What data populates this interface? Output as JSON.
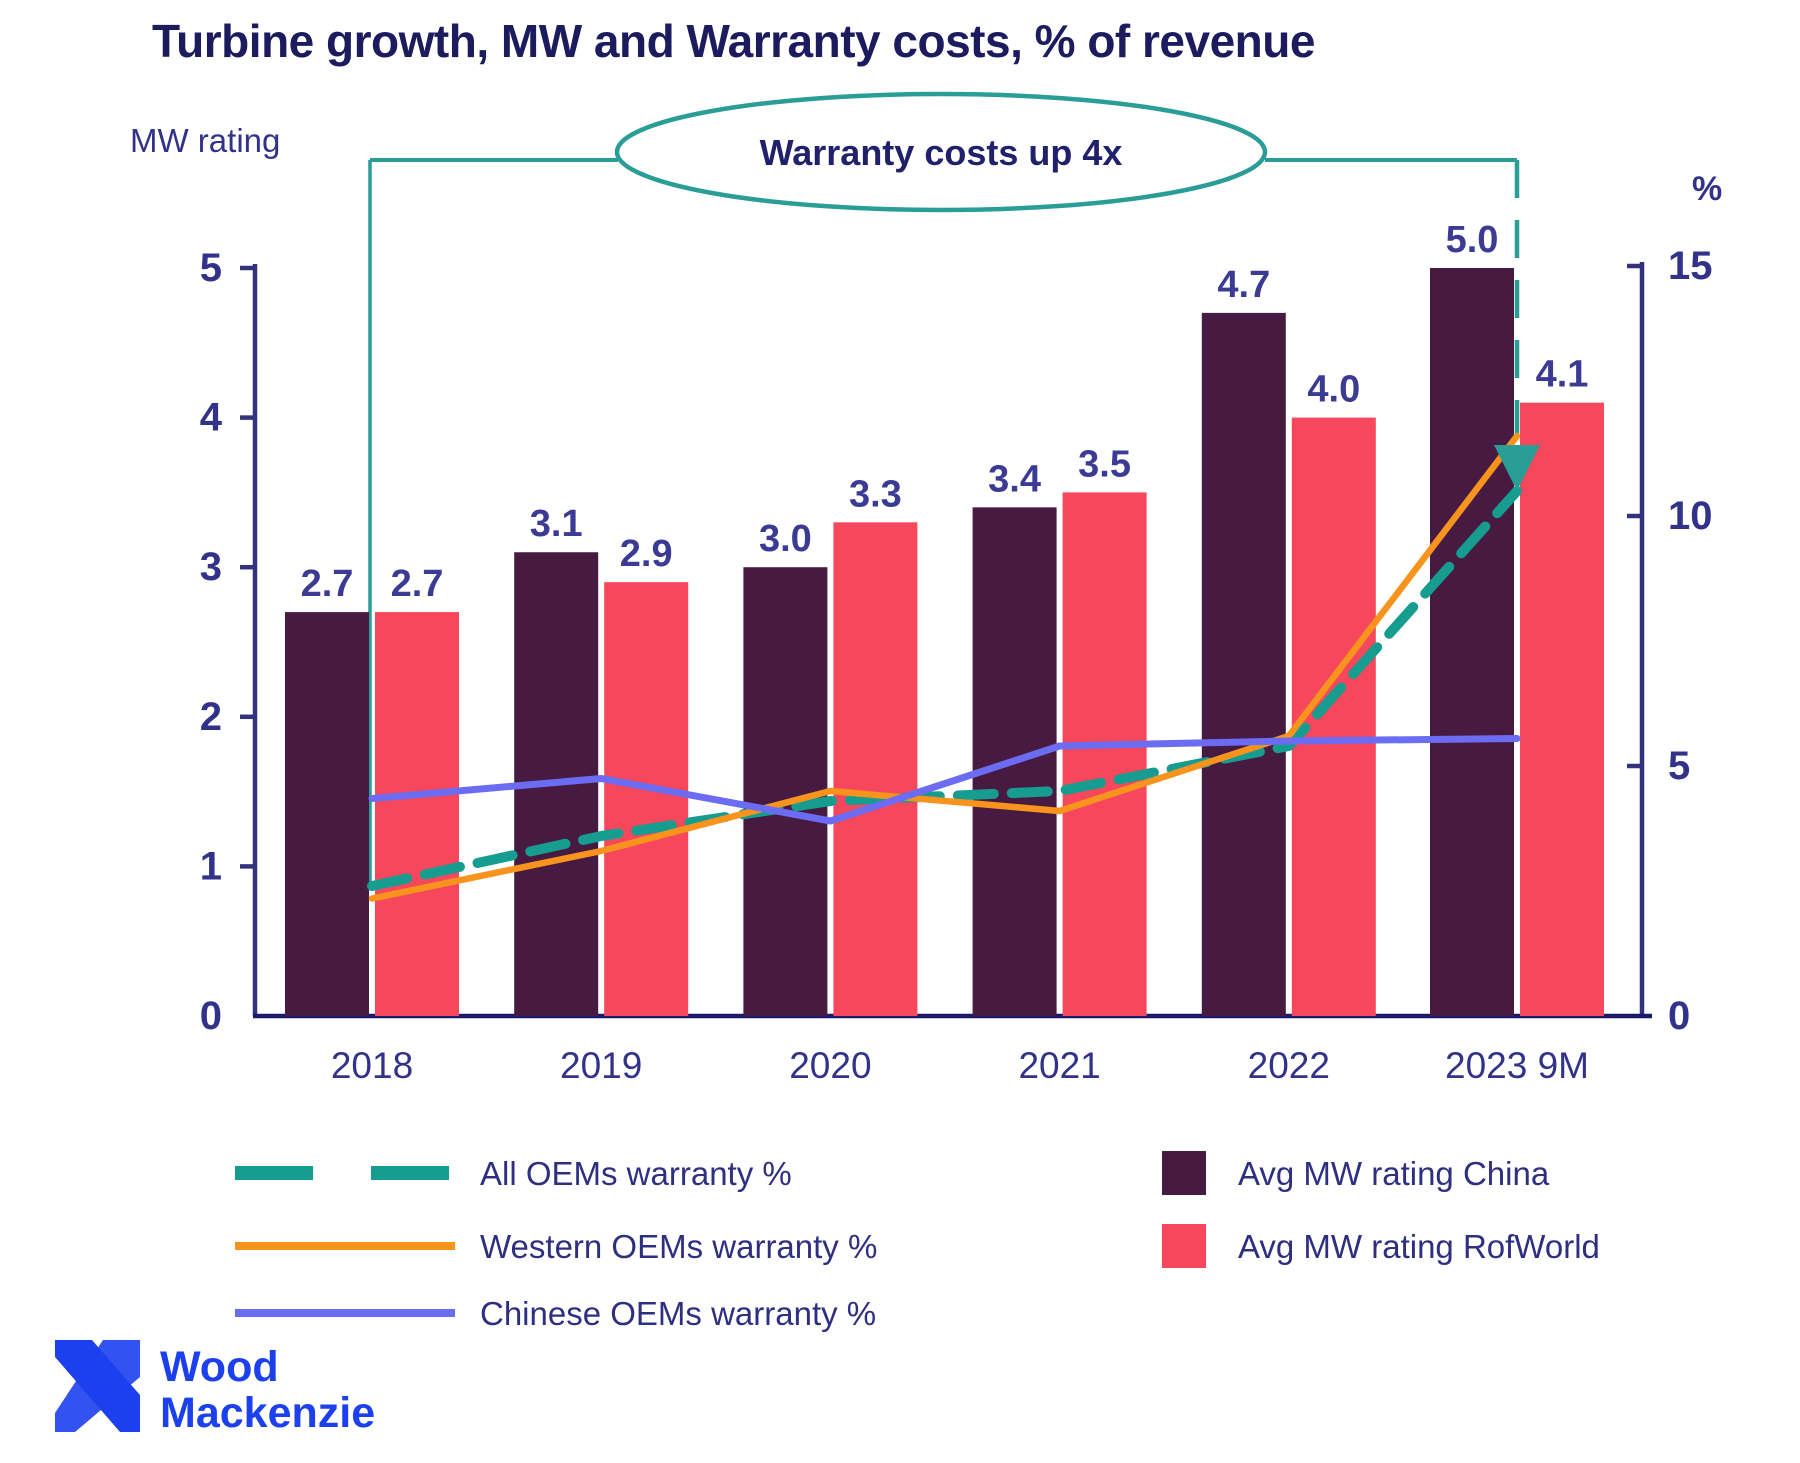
{
  "title": "Turbine growth, MW and Warranty costs, % of revenue",
  "annotation": {
    "text": "Warranty costs up 4x",
    "color": "#2a9d96",
    "text_color": "#21216b"
  },
  "chart_data": {
    "type": "bar+line (dual axis)",
    "categories": [
      "2018",
      "2019",
      "2020",
      "2021",
      "2022",
      "2023 9M"
    ],
    "left_axis": {
      "label": "MW rating",
      "min": 0,
      "max": 5,
      "ticks": [
        0,
        1,
        2,
        3,
        4,
        5
      ]
    },
    "right_axis": {
      "label": "%",
      "min": 0,
      "max": 15,
      "ticks": [
        0,
        5,
        10,
        15
      ]
    },
    "bar_series": [
      {
        "name": "Avg MW rating China",
        "color": "#471b41",
        "values": [
          2.7,
          3.1,
          3.0,
          3.4,
          4.7,
          5.0
        ]
      },
      {
        "name": "Avg MW rating RofWorld",
        "color": "#f6475d",
        "values": [
          2.7,
          2.9,
          3.3,
          3.5,
          4.0,
          4.1
        ]
      }
    ],
    "line_series": [
      {
        "name": "All OEMs warranty %",
        "color": "#179c90",
        "style": "dashed",
        "axis": "right",
        "values": [
          2.6,
          3.6,
          4.3,
          4.5,
          5.4,
          10.5
        ]
      },
      {
        "name": "Western OEMs warranty %",
        "color": "#f8941d",
        "style": "solid",
        "axis": "right",
        "values": [
          2.35,
          3.3,
          4.5,
          4.1,
          5.6,
          11.6
        ]
      },
      {
        "name": "Chinese OEMs warranty %",
        "color": "#6c6cf2",
        "style": "solid",
        "axis": "right",
        "values": [
          4.35,
          4.75,
          3.9,
          5.4,
          5.5,
          5.55
        ]
      }
    ],
    "bar_value_labels_shown": true,
    "grid": "off",
    "legend_position": "bottom"
  },
  "legend": {
    "left_column": [
      {
        "swatch": "dashed-line",
        "color": "#179c90",
        "label": "All OEMs warranty %"
      },
      {
        "swatch": "solid-line",
        "color": "#f8941d",
        "label": "Western OEMs warranty %"
      },
      {
        "swatch": "solid-line",
        "color": "#6c6cf2",
        "label": "Chinese OEMs warranty %"
      }
    ],
    "right_column": [
      {
        "swatch": "square",
        "color": "#471b41",
        "label": "Avg MW rating China"
      },
      {
        "swatch": "square",
        "color": "#f6475d",
        "label": "Avg MW rating RofWorld"
      }
    ]
  },
  "logo": {
    "line1": "Wood",
    "line2": "Mackenzie",
    "color": "#1c40ee"
  },
  "colors": {
    "axis": "#32327f",
    "tick_text": "#32328a",
    "bar_label_text": "#3b3b94",
    "legend_text": "#2f2f82",
    "baseline": "#1a1a6b",
    "title_text": "#1b1b5e"
  }
}
